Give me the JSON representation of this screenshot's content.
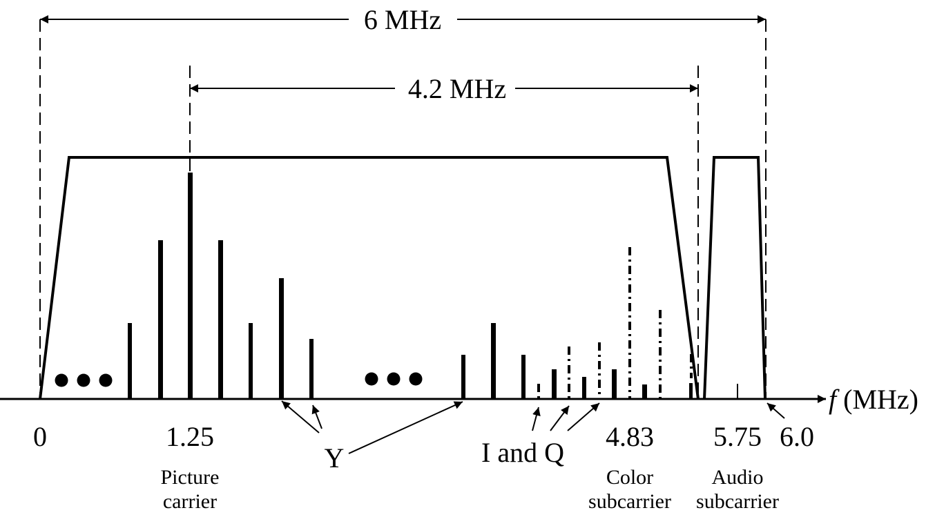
{
  "dimensions": {
    "total_bandwidth": "6 MHz",
    "video_bandwidth": "4.2 MHz"
  },
  "axis": {
    "label_italic": "f",
    "label_unit": " (MHz)",
    "ticks": [
      "0",
      "1.25",
      "4.83",
      "5.75",
      "6.0"
    ]
  },
  "carriers": {
    "picture_line1": "Picture",
    "picture_line2": "carrier",
    "color_line1": "Color",
    "color_line2": "subcarrier",
    "audio_line1": "Audio",
    "audio_line2": "subcarrier"
  },
  "components": {
    "luma": "Y",
    "chroma": "I and Q"
  },
  "colors": {
    "ink": "#000000",
    "background": "#ffffff"
  }
}
